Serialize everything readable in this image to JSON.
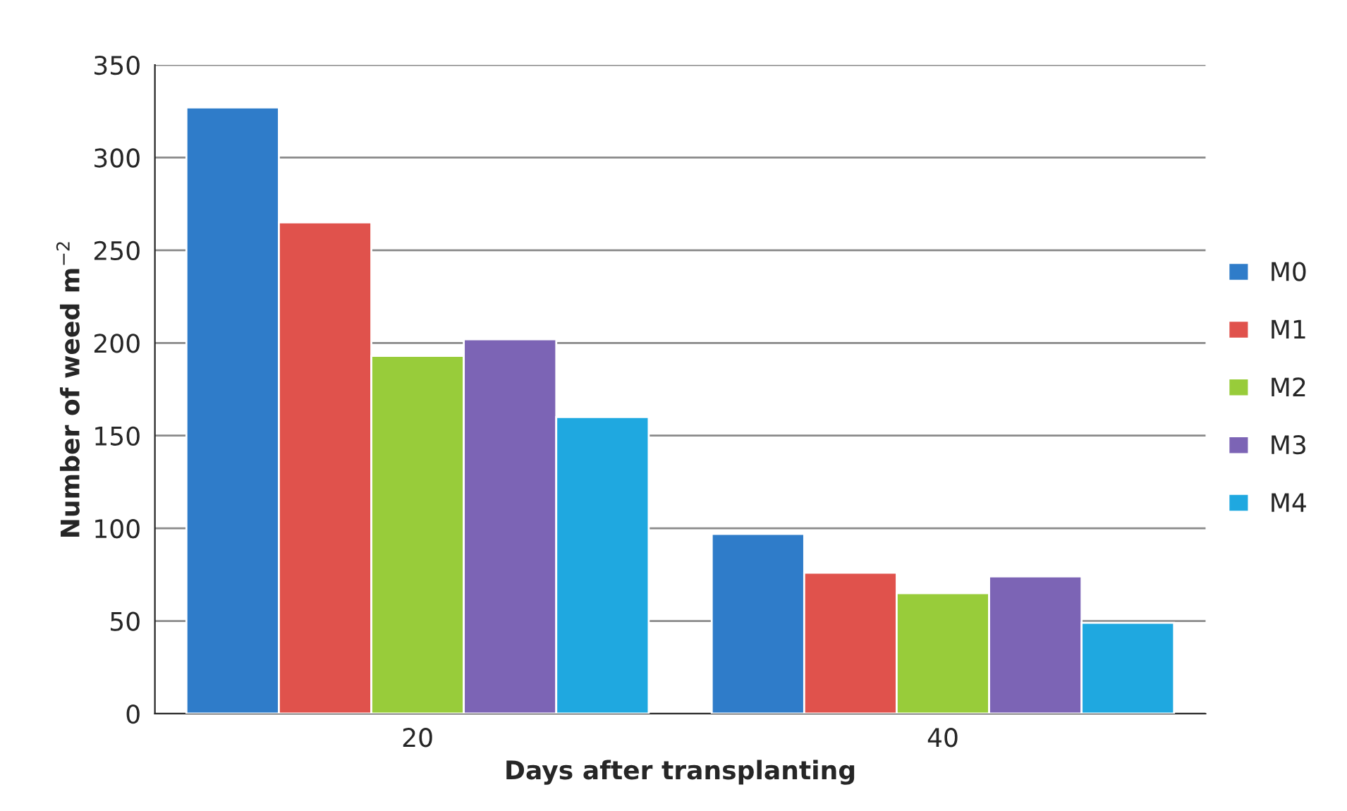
{
  "chart_data": {
    "type": "bar",
    "xlabel": "Days after transplanting",
    "ylabel": "Number of weed m$^{−2}$",
    "categories": [
      "20",
      "40"
    ],
    "series": [
      {
        "name": "M0",
        "color": "#2f7cc9",
        "values": [
          327,
          97
        ]
      },
      {
        "name": "M1",
        "color": "#e0524c",
        "values": [
          265,
          76
        ]
      },
      {
        "name": "M2",
        "color": "#98cc3a",
        "values": [
          193,
          65
        ]
      },
      {
        "name": "M3",
        "color": "#7c64b5",
        "values": [
          202,
          74
        ]
      },
      {
        "name": "M4",
        "color": "#1fa8e0",
        "values": [
          160,
          49
        ]
      }
    ],
    "ylim": [
      0,
      350
    ],
    "yticks": [
      0,
      50,
      100,
      150,
      200,
      250,
      300,
      350
    ],
    "grid": "y",
    "legend": "right"
  }
}
